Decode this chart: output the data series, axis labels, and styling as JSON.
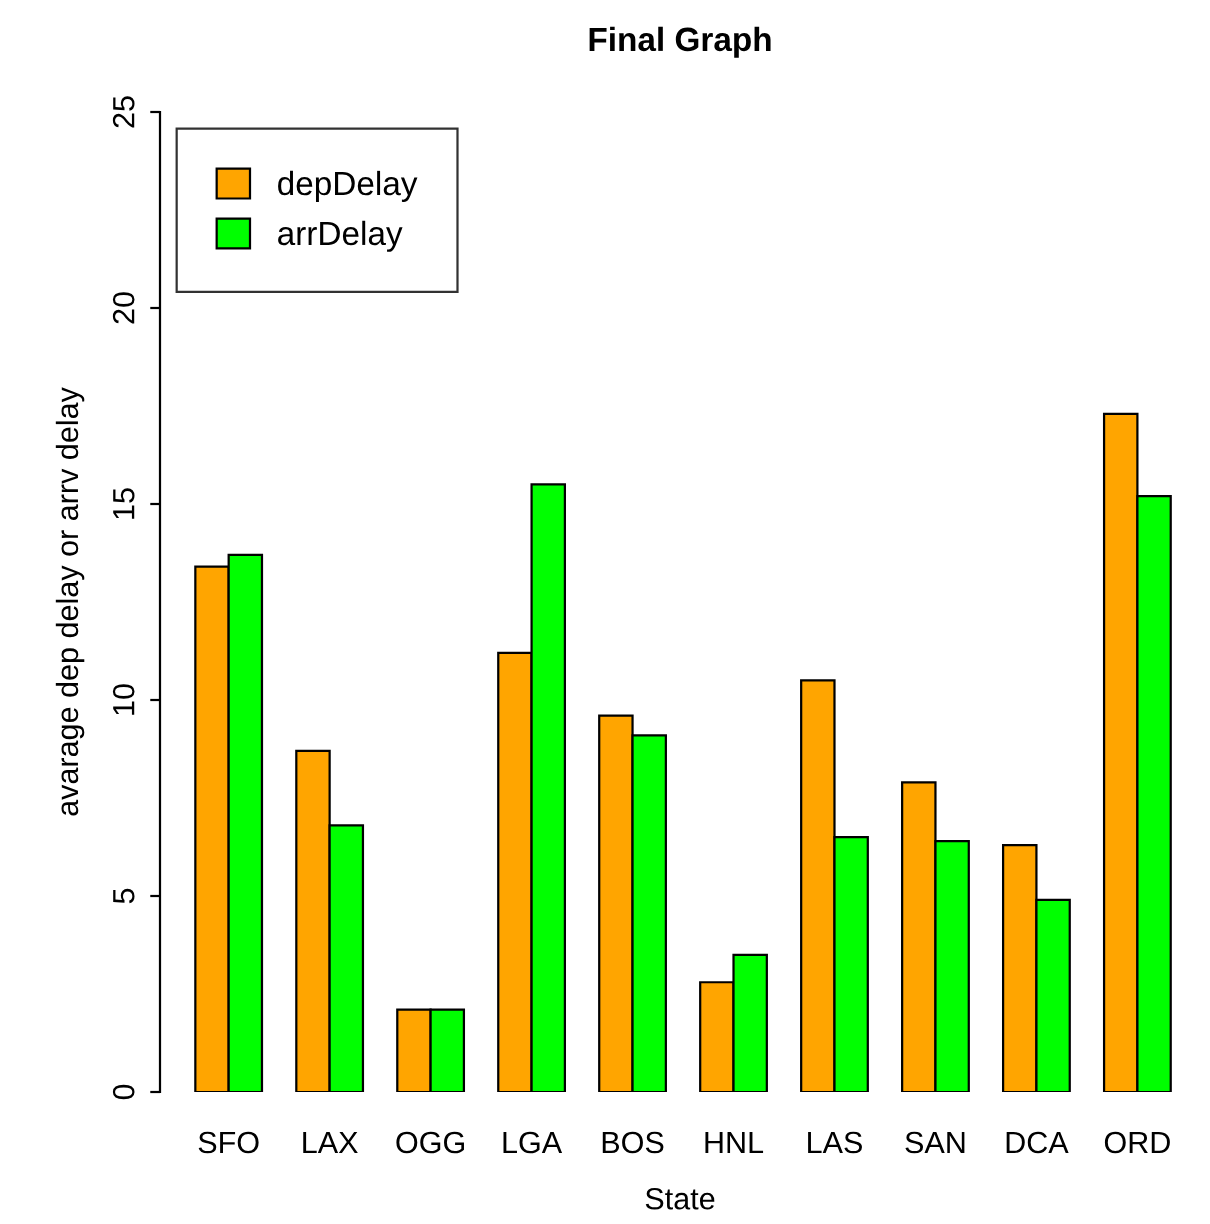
{
  "chart_data": {
    "type": "bar",
    "title": "Final Graph",
    "xlabel": "State",
    "ylabel": "avarage dep delay or arrv delay",
    "categories": [
      "SFO",
      "LAX",
      "OGG",
      "LGA",
      "BOS",
      "HNL",
      "LAS",
      "SAN",
      "DCA",
      "ORD"
    ],
    "series": [
      {
        "name": "depDelay",
        "color": "#ffa500",
        "values": [
          13.4,
          8.7,
          2.1,
          11.2,
          9.6,
          2.8,
          10.5,
          7.9,
          6.3,
          17.3
        ]
      },
      {
        "name": "arrDelay",
        "color": "#00ff00",
        "values": [
          13.7,
          6.8,
          2.1,
          15.5,
          9.1,
          3.5,
          6.5,
          6.4,
          4.9,
          15.2
        ]
      }
    ],
    "ylim": [
      0,
      25
    ],
    "yticks": [
      0,
      5,
      10,
      15,
      20,
      25
    ],
    "grid": false,
    "legend": "top left"
  }
}
